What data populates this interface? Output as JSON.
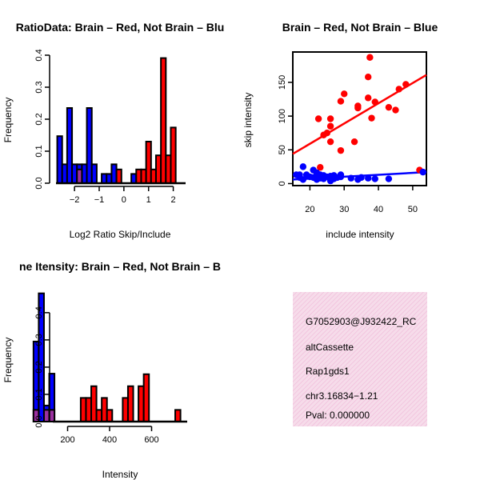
{
  "chart_data": [
    {
      "type": "bar",
      "title": "RatioData: Brain – Red, Not Brain – Blu",
      "xlabel": "Log2 Ratio Skip/Include",
      "ylabel": "Frequency",
      "xlim": [
        -2.75,
        2.5
      ],
      "ylim": [
        0,
        0.4
      ],
      "xticks": [
        -2,
        -1,
        0,
        1,
        2
      ],
      "xtick_labels": [
        "−2",
        "−1",
        "0",
        "1",
        "2"
      ],
      "yticks": [
        0,
        0.1,
        0.2,
        0.3,
        0.4
      ],
      "ytick_labels": [
        "0.0",
        "0.1",
        "0.2",
        "0.3",
        "0.4"
      ],
      "bin_width": 0.2,
      "series": [
        {
          "name": "Not Brain",
          "color": "#0000ff",
          "bins": [
            [
              -2.6,
              0.147
            ],
            [
              -2.4,
              0.059
            ],
            [
              -2.2,
              0.235
            ],
            [
              -2.0,
              0.059
            ],
            [
              -1.8,
              0.059
            ],
            [
              -1.6,
              0.059
            ],
            [
              -1.4,
              0.235
            ],
            [
              -1.2,
              0.059
            ],
            [
              -0.8,
              0.029
            ],
            [
              -0.6,
              0.029
            ],
            [
              -0.4,
              0.059
            ],
            [
              0.4,
              0.029
            ]
          ]
        },
        {
          "name": "Brain",
          "color": "#ff0000",
          "bins": [
            [
              -1.8,
              0.043
            ],
            [
              -0.2,
              0.043
            ],
            [
              0.6,
              0.043
            ],
            [
              0.8,
              0.043
            ],
            [
              1.0,
              0.13
            ],
            [
              1.2,
              0.043
            ],
            [
              1.4,
              0.087
            ],
            [
              1.6,
              0.391
            ],
            [
              1.8,
              0.087
            ],
            [
              2.0,
              0.174
            ]
          ]
        }
      ],
      "overlap_color": "#9b30a0"
    },
    {
      "type": "scatter",
      "title": "Brain – Red, Not Brain – Blue",
      "xlabel": "include intensity",
      "ylabel": "skip intensity",
      "xlim": [
        15,
        54
      ],
      "ylim": [
        -3,
        195
      ],
      "xticks": [
        20,
        30,
        40,
        50
      ],
      "yticks": [
        0,
        50,
        100,
        150
      ],
      "series": [
        {
          "name": "Brain",
          "color": "#ff0000",
          "points": [
            [
              23,
              24
            ],
            [
              22.5,
              96
            ],
            [
              24,
              72
            ],
            [
              25,
              75
            ],
            [
              26,
              85
            ],
            [
              26,
              96
            ],
            [
              26,
              62
            ],
            [
              29,
              49
            ],
            [
              29,
              122
            ],
            [
              30,
              133
            ],
            [
              33,
              62
            ],
            [
              34,
              115
            ],
            [
              34,
              112
            ],
            [
              37,
              127
            ],
            [
              37,
              158
            ],
            [
              37.5,
              187
            ],
            [
              38,
              97
            ],
            [
              39,
              121
            ],
            [
              43,
              113
            ],
            [
              45,
              109
            ],
            [
              46,
              140
            ],
            [
              48,
              147
            ],
            [
              52,
              20
            ]
          ],
          "fit": [
            [
              15,
              44
            ],
            [
              54,
              161
            ]
          ]
        },
        {
          "name": "Not Brain",
          "color": "#0000ff",
          "points": [
            [
              16,
              13
            ],
            [
              17,
              13
            ],
            [
              17,
              9
            ],
            [
              18,
              6
            ],
            [
              18,
              25
            ],
            [
              19,
              13
            ],
            [
              20,
              10
            ],
            [
              21,
              9
            ],
            [
              21,
              20
            ],
            [
              22,
              12
            ],
            [
              22,
              16
            ],
            [
              22,
              6
            ],
            [
              23,
              8
            ],
            [
              23,
              13
            ],
            [
              24,
              7
            ],
            [
              24,
              12
            ],
            [
              25,
              10
            ],
            [
              26,
              4
            ],
            [
              26,
              11
            ],
            [
              27,
              7
            ],
            [
              27,
              12
            ],
            [
              28,
              9
            ],
            [
              29,
              10
            ],
            [
              29,
              13
            ],
            [
              32,
              8
            ],
            [
              34,
              6
            ],
            [
              35,
              9
            ],
            [
              37,
              8
            ],
            [
              39,
              7
            ],
            [
              43,
              7
            ],
            [
              53,
              17
            ]
          ],
          "fit": [
            [
              15,
              6
            ],
            [
              54,
              17
            ]
          ]
        }
      ]
    },
    {
      "type": "bar",
      "title": "ne Itensity: Brain – Red, Not Brain – B",
      "xlabel": "Intensity",
      "ylabel": "Frequency",
      "xlim": [
        0,
        800
      ],
      "ylim": [
        0,
        0.47
      ],
      "xticks": [
        200,
        400,
        600
      ],
      "yticks": [
        0,
        0.1,
        0.2,
        0.3,
        0.4
      ],
      "ytick_labels": [
        "0.0",
        "0.1",
        "0.2",
        "0.3",
        "0.4"
      ],
      "bin_width": 25,
      "series": [
        {
          "name": "Not Brain",
          "color": "#0000ff",
          "bins": [
            [
              50,
              0.294
            ],
            [
              75,
              0.471
            ],
            [
              100,
              0.059
            ],
            [
              125,
              0.176
            ]
          ]
        },
        {
          "name": "Brain",
          "color": "#ff0000",
          "bins": [
            [
              50,
              0.043
            ],
            [
              100,
              0.043
            ],
            [
              125,
              0.043
            ],
            [
              275,
              0.087
            ],
            [
              300,
              0.087
            ],
            [
              325,
              0.13
            ],
            [
              350,
              0.043
            ],
            [
              375,
              0.087
            ],
            [
              400,
              0.043
            ],
            [
              475,
              0.087
            ],
            [
              500,
              0.13
            ],
            [
              550,
              0.13
            ],
            [
              575,
              0.174
            ],
            [
              725,
              0.043
            ]
          ]
        }
      ],
      "overlap_color": "#9b30a0"
    }
  ],
  "info_box": {
    "lines": [
      "G7052903@J932422_RC",
      "altCassette",
      "Rap1gds1",
      "chr3.16834−1.21"
    ],
    "pval": "Pval: 0.000000",
    "pval_color": "#cc0000",
    "bg_color": "#f6dcea",
    "hatch_color": "#f0b8d8"
  }
}
